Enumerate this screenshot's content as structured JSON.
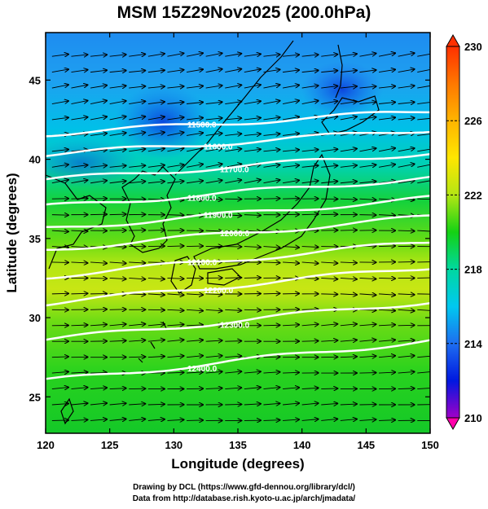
{
  "title": "MSM 15Z29Nov2025 (200.0hPa)",
  "xlabel": "Longitude (degrees)",
  "ylabel": "Latitude  (degrees)",
  "x_ticks": [
    "120",
    "125",
    "130",
    "135",
    "140",
    "145",
    "150"
  ],
  "y_ticks": [
    "25",
    "30",
    "35",
    "40",
    "45"
  ],
  "colorbar": {
    "ticks": [
      "230",
      "226",
      "222",
      "218",
      "214",
      "210"
    ],
    "range": [
      210,
      230
    ],
    "colors": [
      "#ff00aa",
      "#6a00c8",
      "#0018e0",
      "#1e6ef0",
      "#00c8f0",
      "#00d8a0",
      "#14d214",
      "#64dc14",
      "#b4e614",
      "#ffe600",
      "#ffa000",
      "#ff3000"
    ]
  },
  "contours": [
    {
      "label": "11500.0",
      "lat": 41.6
    },
    {
      "label": "11600.0",
      "lat": 40.3
    },
    {
      "label": "11700.0",
      "lat": 38.7
    },
    {
      "label": "11800.0",
      "lat": 37.0
    },
    {
      "label": "11900.0",
      "lat": 35.6
    },
    {
      "label": "12000.0",
      "lat": 34.3
    },
    {
      "label": "12100.0",
      "lat": 32.6
    },
    {
      "label": "12200.0",
      "lat": 30.9
    },
    {
      "label": "12300.0",
      "lat": 28.6
    },
    {
      "label": "12400.0",
      "lat": 26.0
    }
  ],
  "credits": {
    "line1": "Drawing by DCL (https://www.gfd-dennou.org/library/dcl/)",
    "line2": "Data from http://database.rish.kyoto-u.ac.jp/arch/jmadata/"
  }
}
